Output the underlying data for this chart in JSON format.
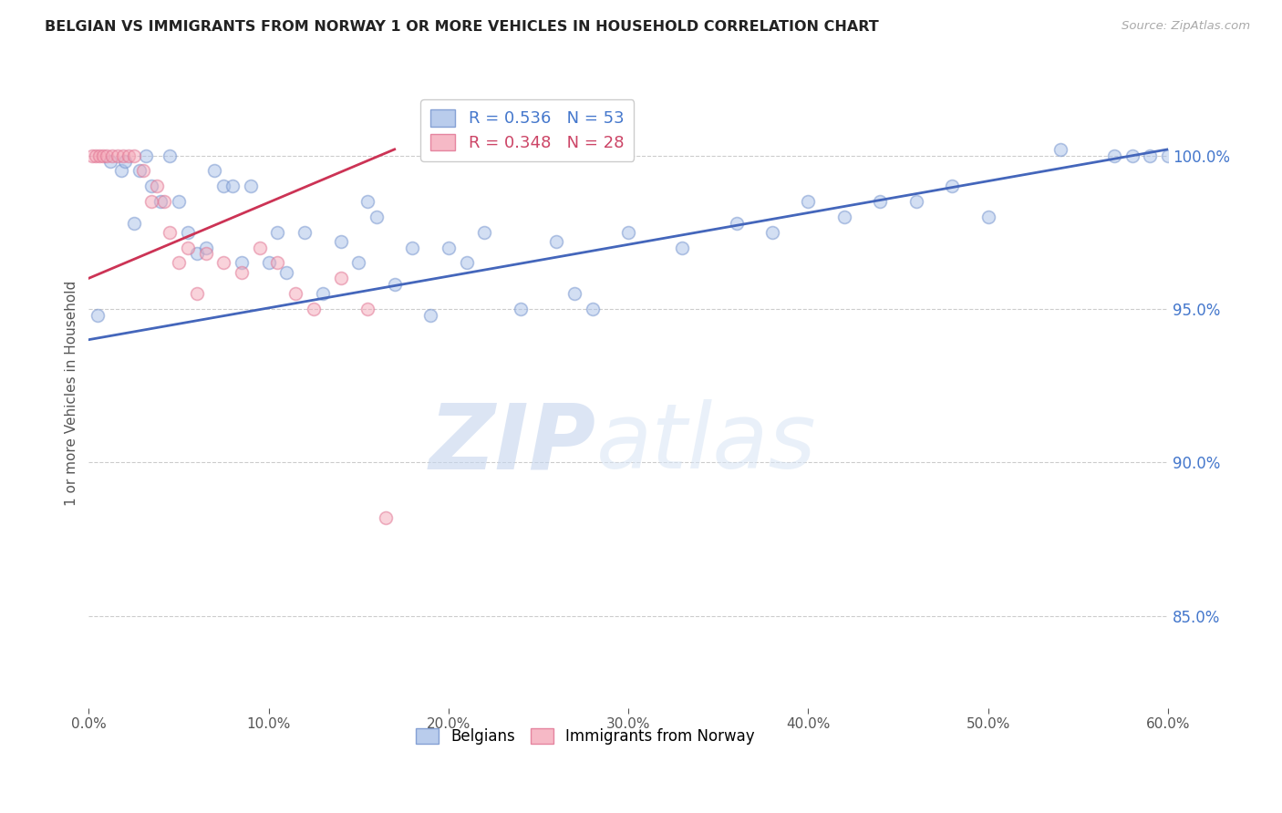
{
  "title": "BELGIAN VS IMMIGRANTS FROM NORWAY 1 OR MORE VEHICLES IN HOUSEHOLD CORRELATION CHART",
  "source": "Source: ZipAtlas.com",
  "ylabel": "1 or more Vehicles in Household",
  "xlim": [
    0.0,
    60.0
  ],
  "ylim": [
    82.0,
    102.5
  ],
  "x_ticks": [
    0.0,
    10.0,
    20.0,
    30.0,
    40.0,
    50.0,
    60.0
  ],
  "x_tick_labels": [
    "0.0%",
    "10.0%",
    "20.0%",
    "30.0%",
    "40.0%",
    "50.0%",
    "60.0%"
  ],
  "y_ticks": [
    85.0,
    90.0,
    95.0,
    100.0
  ],
  "y_tick_labels": [
    "85.0%",
    "90.0%",
    "95.0%",
    "100.0%"
  ],
  "legend_blue_label": "R = 0.536   N = 53",
  "legend_pink_label": "R = 0.348   N = 28",
  "legend_blue_color": "#a8c0e8",
  "legend_pink_color": "#f4a8b8",
  "legend_blue_edge": "#7090cc",
  "legend_pink_edge": "#e07090",
  "watermark_zip": "ZIP",
  "watermark_atlas": "atlas",
  "blue_scatter_x": [
    0.5,
    1.2,
    1.8,
    2.0,
    2.5,
    2.8,
    3.2,
    3.5,
    4.0,
    4.5,
    5.0,
    5.5,
    6.0,
    6.5,
    7.0,
    7.5,
    8.0,
    8.5,
    9.0,
    10.0,
    10.5,
    11.0,
    12.0,
    13.0,
    14.0,
    15.0,
    15.5,
    16.0,
    17.0,
    18.0,
    19.0,
    20.0,
    21.0,
    22.0,
    24.0,
    26.0,
    27.0,
    28.0,
    30.0,
    33.0,
    36.0,
    38.0,
    40.0,
    42.0,
    44.0,
    46.0,
    48.0,
    50.0,
    54.0,
    57.0,
    58.0,
    59.0,
    60.0
  ],
  "blue_scatter_y": [
    94.8,
    99.8,
    99.5,
    99.8,
    97.8,
    99.5,
    100.0,
    99.0,
    98.5,
    100.0,
    98.5,
    97.5,
    96.8,
    97.0,
    99.5,
    99.0,
    99.0,
    96.5,
    99.0,
    96.5,
    97.5,
    96.2,
    97.5,
    95.5,
    97.2,
    96.5,
    98.5,
    98.0,
    95.8,
    97.0,
    94.8,
    97.0,
    96.5,
    97.5,
    95.0,
    97.2,
    95.5,
    95.0,
    97.5,
    97.0,
    97.8,
    97.5,
    98.5,
    98.0,
    98.5,
    98.5,
    99.0,
    98.0,
    100.2,
    100.0,
    100.0,
    100.0,
    100.0
  ],
  "pink_scatter_x": [
    0.2,
    0.4,
    0.6,
    0.8,
    1.0,
    1.3,
    1.6,
    1.9,
    2.2,
    2.5,
    3.0,
    3.5,
    4.5,
    5.5,
    6.5,
    7.5,
    8.5,
    9.5,
    10.5,
    11.5,
    12.5,
    14.0,
    15.5,
    16.5,
    3.8,
    4.2,
    5.0,
    6.0
  ],
  "pink_scatter_y": [
    100.0,
    100.0,
    100.0,
    100.0,
    100.0,
    100.0,
    100.0,
    100.0,
    100.0,
    100.0,
    99.5,
    98.5,
    97.5,
    97.0,
    96.8,
    96.5,
    96.2,
    97.0,
    96.5,
    95.5,
    95.0,
    96.0,
    95.0,
    88.2,
    99.0,
    98.5,
    96.5,
    95.5
  ],
  "blue_line_x": [
    0.0,
    60.0
  ],
  "blue_line_y": [
    94.0,
    100.2
  ],
  "pink_line_x": [
    0.0,
    17.0
  ],
  "pink_line_y": [
    96.0,
    100.2
  ],
  "bg_color": "#ffffff",
  "scatter_alpha": 0.5,
  "scatter_size": 100,
  "grid_color": "#cccccc",
  "title_color": "#222222",
  "axis_label_color": "#555555",
  "right_tick_color": "#4477cc",
  "source_color": "#aaaaaa",
  "line_blue_color": "#4466bb",
  "line_pink_color": "#cc3355"
}
